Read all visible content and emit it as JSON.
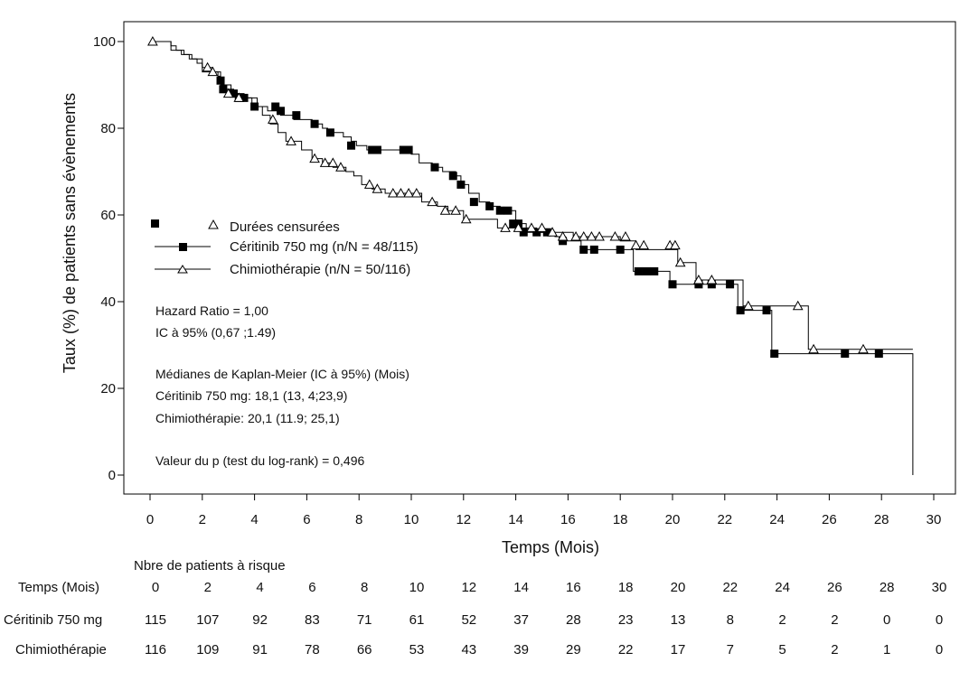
{
  "chart_data": {
    "type": "line",
    "subtype": "kaplan-meier",
    "xlabel": "Temps (Mois)",
    "ylabel": "Taux (%) de patients sans évènements",
    "xlim": [
      0,
      30
    ],
    "ylim": [
      0,
      100
    ],
    "x_ticks": [
      "0",
      "2",
      "4",
      "6",
      "8",
      "10",
      "12",
      "14",
      "16",
      "18",
      "20",
      "22",
      "24",
      "26",
      "28",
      "30"
    ],
    "y_ticks": [
      "0",
      "20",
      "40",
      "60",
      "80",
      "100"
    ],
    "grid": false,
    "legend": {
      "censored_label": "Durées censurées",
      "entries": [
        "Céritinib 750 mg (n/N = 48/115)",
        "Chimiothérapie (n/N = 50/116)"
      ]
    },
    "annotations": [
      "Hazard Ratio  = 1,00",
      "IC à 95% (0,67 ;1.49)",
      "Médianes de Kaplan-Meier (IC à 95%) (Mois)",
      "Céritinib 750 mg: 18,1 (13, 4;23,9)",
      "Chimiothérapie: 20,1 (11.9; 25,1)",
      "Valeur du p (test du log-rank) = 0,496"
    ],
    "series": [
      {
        "name": "Céritinib 750 mg (n/N = 48/115)",
        "marker": "square",
        "color": "#000000",
        "steps": [
          [
            0,
            100
          ],
          [
            0.8,
            99
          ],
          [
            1.0,
            98
          ],
          [
            1.3,
            97
          ],
          [
            1.5,
            96
          ],
          [
            1.8,
            95
          ],
          [
            2.0,
            93
          ],
          [
            2.6,
            92
          ],
          [
            2.7,
            90
          ],
          [
            2.9,
            89
          ],
          [
            3.2,
            88
          ],
          [
            3.4,
            87
          ],
          [
            4.1,
            85
          ],
          [
            4.5,
            84
          ],
          [
            5.0,
            83
          ],
          [
            5.5,
            82
          ],
          [
            6.2,
            81
          ],
          [
            6.6,
            80
          ],
          [
            6.8,
            79
          ],
          [
            7.4,
            78
          ],
          [
            7.7,
            77
          ],
          [
            7.9,
            76
          ],
          [
            8.3,
            75
          ],
          [
            10.0,
            74
          ],
          [
            10.3,
            72
          ],
          [
            10.8,
            71
          ],
          [
            11.2,
            70
          ],
          [
            11.7,
            69
          ],
          [
            11.9,
            67
          ],
          [
            12.2,
            65
          ],
          [
            12.6,
            63
          ],
          [
            13.0,
            62
          ],
          [
            13.4,
            61
          ],
          [
            14.0,
            58
          ],
          [
            14.4,
            56
          ],
          [
            15.5,
            55
          ],
          [
            15.9,
            54
          ],
          [
            16.5,
            52
          ],
          [
            18.5,
            47
          ],
          [
            19.9,
            44
          ],
          [
            20.1,
            44
          ],
          [
            22.5,
            38
          ],
          [
            23.8,
            28
          ],
          [
            29.2,
            0
          ]
        ],
        "censored": [
          [
            2.7,
            91
          ],
          [
            2.8,
            89
          ],
          [
            3.2,
            88
          ],
          [
            3.4,
            87
          ],
          [
            3.6,
            87
          ],
          [
            4.0,
            85
          ],
          [
            4.8,
            85
          ],
          [
            5.0,
            84
          ],
          [
            5.6,
            83
          ],
          [
            6.3,
            81
          ],
          [
            6.9,
            79
          ],
          [
            7.7,
            76
          ],
          [
            8.5,
            75
          ],
          [
            8.7,
            75
          ],
          [
            9.7,
            75
          ],
          [
            9.9,
            75
          ],
          [
            10.9,
            71
          ],
          [
            11.6,
            69
          ],
          [
            11.9,
            67
          ],
          [
            12.4,
            63
          ],
          [
            13.0,
            62
          ],
          [
            13.4,
            61
          ],
          [
            13.7,
            61
          ],
          [
            13.9,
            58
          ],
          [
            14.1,
            58
          ],
          [
            14.3,
            56
          ],
          [
            14.8,
            56
          ],
          [
            15.2,
            56
          ],
          [
            15.8,
            54
          ],
          [
            16.6,
            52
          ],
          [
            17.0,
            52
          ],
          [
            18.0,
            52
          ],
          [
            18.7,
            47
          ],
          [
            19.0,
            47
          ],
          [
            19.3,
            47
          ],
          [
            20.0,
            44
          ],
          [
            21.0,
            44
          ],
          [
            21.5,
            44
          ],
          [
            22.2,
            44
          ],
          [
            22.6,
            38
          ],
          [
            23.6,
            38
          ],
          [
            23.9,
            28
          ],
          [
            26.6,
            28
          ],
          [
            27.9,
            28
          ]
        ]
      },
      {
        "name": "Chimiothérapie (n/N = 50/116)",
        "marker": "triangle",
        "color": "#000000",
        "steps": [
          [
            0,
            100
          ],
          [
            0.8,
            98
          ],
          [
            1.2,
            97
          ],
          [
            1.6,
            96
          ],
          [
            2.0,
            94
          ],
          [
            2.4,
            93
          ],
          [
            2.7,
            90
          ],
          [
            3.1,
            88
          ],
          [
            3.6,
            87
          ],
          [
            3.9,
            85
          ],
          [
            4.3,
            83
          ],
          [
            4.6,
            81
          ],
          [
            4.9,
            79
          ],
          [
            5.2,
            77
          ],
          [
            5.8,
            75
          ],
          [
            6.2,
            73
          ],
          [
            6.6,
            72
          ],
          [
            7.0,
            71
          ],
          [
            7.5,
            70
          ],
          [
            7.8,
            69
          ],
          [
            8.1,
            67
          ],
          [
            8.5,
            66
          ],
          [
            9.0,
            65
          ],
          [
            10.4,
            63
          ],
          [
            11.0,
            62
          ],
          [
            11.4,
            61
          ],
          [
            12.0,
            59
          ],
          [
            13.3,
            57
          ],
          [
            13.7,
            57
          ],
          [
            14.8,
            56
          ],
          [
            15.4,
            56
          ],
          [
            16.2,
            55
          ],
          [
            18.0,
            54
          ],
          [
            18.6,
            52
          ],
          [
            20.2,
            49
          ],
          [
            20.9,
            45
          ],
          [
            22.7,
            39
          ],
          [
            25.2,
            29
          ],
          [
            29.2,
            29
          ]
        ],
        "censored": [
          [
            0.1,
            100
          ],
          [
            2.2,
            94
          ],
          [
            2.4,
            93
          ],
          [
            3.0,
            88
          ],
          [
            3.4,
            87
          ],
          [
            4.7,
            82
          ],
          [
            5.4,
            77
          ],
          [
            6.3,
            73
          ],
          [
            6.7,
            72
          ],
          [
            7.0,
            72
          ],
          [
            7.3,
            71
          ],
          [
            8.4,
            67
          ],
          [
            8.7,
            66
          ],
          [
            9.3,
            65
          ],
          [
            9.6,
            65
          ],
          [
            9.9,
            65
          ],
          [
            10.2,
            65
          ],
          [
            10.8,
            63
          ],
          [
            11.3,
            61
          ],
          [
            11.7,
            61
          ],
          [
            12.1,
            59
          ],
          [
            13.6,
            57
          ],
          [
            14.1,
            57
          ],
          [
            14.6,
            57
          ],
          [
            15.0,
            57
          ],
          [
            15.4,
            56
          ],
          [
            15.8,
            55
          ],
          [
            16.3,
            55
          ],
          [
            16.6,
            55
          ],
          [
            16.9,
            55
          ],
          [
            17.2,
            55
          ],
          [
            17.8,
            55
          ],
          [
            18.2,
            55
          ],
          [
            18.6,
            53
          ],
          [
            18.9,
            53
          ],
          [
            19.9,
            53
          ],
          [
            20.1,
            53
          ],
          [
            20.3,
            49
          ],
          [
            21.0,
            45
          ],
          [
            21.5,
            45
          ],
          [
            22.9,
            39
          ],
          [
            24.8,
            39
          ],
          [
            25.4,
            29
          ],
          [
            27.3,
            29
          ]
        ]
      }
    ],
    "risk_table": {
      "title": "Nbre de patients à risque",
      "time_label": "Temps (Mois)",
      "times": [
        "0",
        "2",
        "4",
        "6",
        "8",
        "10",
        "12",
        "14",
        "16",
        "18",
        "20",
        "22",
        "24",
        "26",
        "28",
        "30"
      ],
      "rows": [
        {
          "label": "Céritinib 750 mg",
          "values": [
            "115",
            "107",
            "92",
            "83",
            "71",
            "61",
            "52",
            "37",
            "28",
            "23",
            "13",
            "8",
            "2",
            "2",
            "0",
            "0"
          ]
        },
        {
          "label": "Chimiothérapie",
          "values": [
            "116",
            "109",
            "91",
            "78",
            "66",
            "53",
            "43",
            "39",
            "29",
            "22",
            "17",
            "7",
            "5",
            "2",
            "1",
            "0"
          ]
        }
      ]
    }
  }
}
